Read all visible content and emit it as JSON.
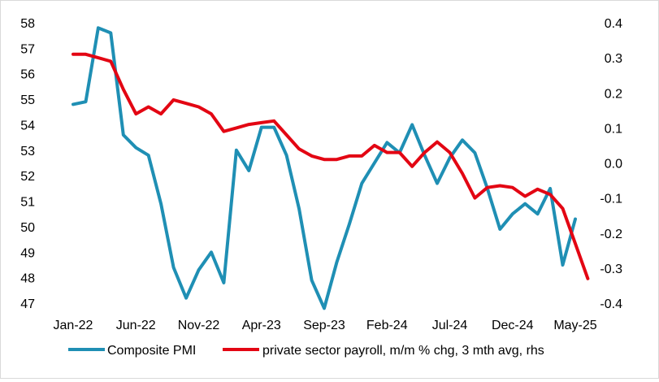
{
  "chart_data": {
    "type": "line",
    "title": "",
    "x_tick_labels": [
      "Jan-22",
      "Jun-22",
      "Nov-22",
      "Apr-23",
      "Sep-23",
      "Feb-24",
      "Jul-24",
      "Dec-24",
      "May-25"
    ],
    "left_axis": {
      "ylim": [
        47,
        58
      ],
      "ticks": [
        "58",
        "57",
        "56",
        "55",
        "54",
        "53",
        "52",
        "51",
        "50",
        "49",
        "48",
        "47"
      ]
    },
    "right_axis": {
      "ylim": [
        -0.4,
        0.4
      ],
      "ticks": [
        "0.4",
        "0.3",
        "0.2",
        "0.1",
        "0.0",
        "-0.1",
        "-0.2",
        "-0.3",
        "-0.4"
      ]
    },
    "grid": false,
    "legend_position": "bottom",
    "series": [
      {
        "name": "Composite PMI",
        "axis": "left",
        "color": "#1f8fb4",
        "start": "Jan-22",
        "values": [
          54.8,
          54.9,
          57.8,
          57.6,
          53.6,
          53.1,
          52.8,
          50.9,
          48.4,
          47.2,
          48.3,
          49.0,
          47.8,
          53.0,
          52.2,
          53.9,
          53.9,
          52.8,
          50.7,
          47.9,
          46.8,
          48.6,
          50.1,
          51.7,
          52.5,
          53.3,
          52.9,
          54.0,
          52.8,
          51.7,
          52.7,
          53.4,
          52.9,
          51.5,
          49.9,
          50.5,
          50.9,
          50.5,
          51.5,
          48.5,
          50.3
        ]
      },
      {
        "name": "private sector payroll, m/m % chg, 3 mth avg, rhs",
        "axis": "right",
        "color": "#e30613",
        "start": "Jan-22",
        "values": [
          0.31,
          0.31,
          0.3,
          0.29,
          0.21,
          0.14,
          0.16,
          0.14,
          0.18,
          0.17,
          0.16,
          0.14,
          0.09,
          0.1,
          0.11,
          0.115,
          0.12,
          0.08,
          0.04,
          0.02,
          0.01,
          0.01,
          0.02,
          0.02,
          0.05,
          0.03,
          0.03,
          -0.01,
          0.03,
          0.06,
          0.03,
          -0.03,
          -0.1,
          -0.07,
          -0.065,
          -0.07,
          -0.095,
          -0.075,
          -0.09,
          -0.13,
          -0.23,
          -0.33
        ]
      }
    ]
  }
}
